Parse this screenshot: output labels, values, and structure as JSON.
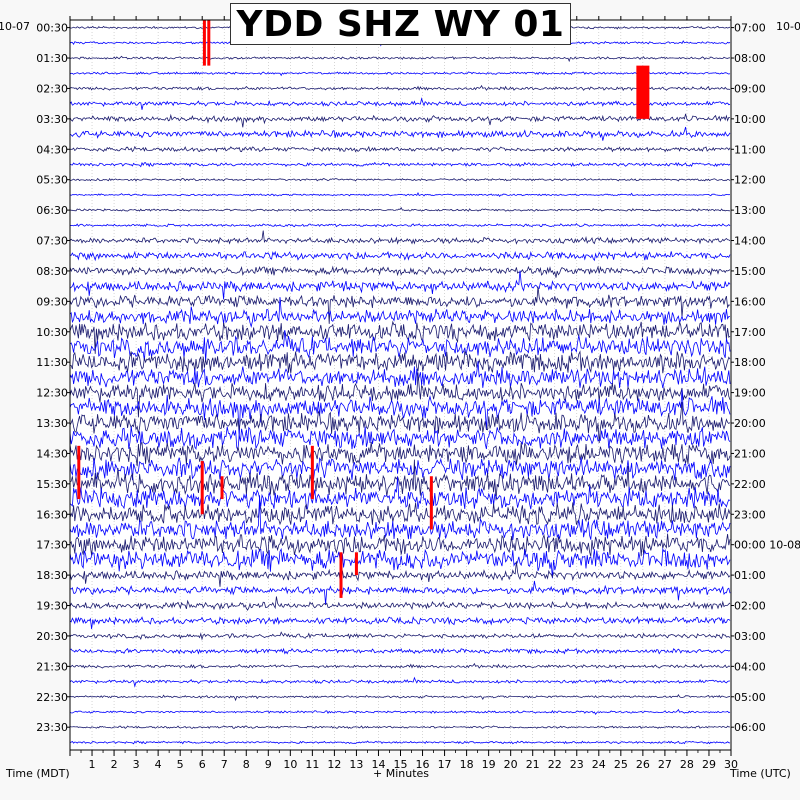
{
  "station_title": "YDD SHZ WY 01",
  "start_date_left": "10-07",
  "start_date_right": "10-0",
  "x_label": "+ Minutes",
  "left_axis_label": "Time (MDT)",
  "right_axis_label": "Time (UTC)",
  "colors": {
    "trace_navy": "#1a1a6e",
    "trace_blue": "#0000ff",
    "trigger_red": "#ff0000",
    "frame": "#000000",
    "background": "#f8f8f8",
    "plot_bg": "#ffffff"
  },
  "chart_data": {
    "type": "line",
    "title": "YDD SHZ WY 01",
    "xlabel": "+ Minutes",
    "xlim": [
      0,
      30
    ],
    "x_ticks": [
      1,
      2,
      3,
      4,
      5,
      6,
      7,
      8,
      9,
      10,
      11,
      12,
      13,
      14,
      15,
      16,
      17,
      18,
      19,
      20,
      21,
      22,
      23,
      24,
      25,
      26,
      27,
      28,
      29,
      30
    ],
    "left_time_labels": [
      "00:30",
      "01:30",
      "02:30",
      "03:30",
      "04:30",
      "05:30",
      "06:30",
      "07:30",
      "08:30",
      "09:30",
      "10:30",
      "11:30",
      "12:30",
      "13:30",
      "14:30",
      "15:30",
      "16:30",
      "17:30",
      "18:30",
      "19:30",
      "20:30",
      "21:30",
      "22:30",
      "23:30"
    ],
    "right_time_labels": [
      "07:00",
      "08:00",
      "09:00",
      "10:00",
      "11:00",
      "12:00",
      "13:00",
      "14:00",
      "15:00",
      "16:00",
      "17:00",
      "18:00",
      "19:00",
      "20:00",
      "21:00",
      "22:00",
      "23:00",
      "00:00 10-08",
      "01:00",
      "02:00",
      "03:00",
      "04:00",
      "05:00",
      "06:00"
    ],
    "trace_rows": 48,
    "trace_colors": [
      "#1a1a6e",
      "#0000ff"
    ],
    "noise_amplitude_by_half_hour": [
      1,
      1,
      1,
      1,
      1.5,
      2,
      2.5,
      3,
      2,
      1.5,
      1,
      0.8,
      1,
      1.2,
      2.5,
      3.5,
      3.5,
      4.5,
      5.5,
      6.5,
      8,
      9,
      9,
      9,
      8,
      9,
      9,
      9.5,
      9,
      9.5,
      9.5,
      9.5,
      9,
      8.5,
      9,
      9.5,
      4,
      3.5,
      3,
      3,
      2,
      2,
      1.5,
      1.5,
      1,
      1,
      1,
      1
    ],
    "trigger_markers": [
      {
        "row": 0,
        "minute": 6.1,
        "span_rows": 3
      },
      {
        "row": 0,
        "minute": 6.3,
        "span_rows": 3
      },
      {
        "row": 3,
        "minute": 26.0,
        "span_rows": 3.5
      },
      {
        "row": 28,
        "minute": 0.4,
        "span_rows": 3.5
      },
      {
        "row": 29,
        "minute": 6.0,
        "span_rows": 3.5
      },
      {
        "row": 30,
        "minute": 6.9,
        "span_rows": 1.5
      },
      {
        "row": 28,
        "minute": 11.0,
        "span_rows": 3.5
      },
      {
        "row": 30,
        "minute": 16.4,
        "span_rows": 3.5
      },
      {
        "row": 35,
        "minute": 12.3,
        "span_rows": 3
      },
      {
        "row": 35,
        "minute": 13.0,
        "span_rows": 1.5
      }
    ]
  }
}
